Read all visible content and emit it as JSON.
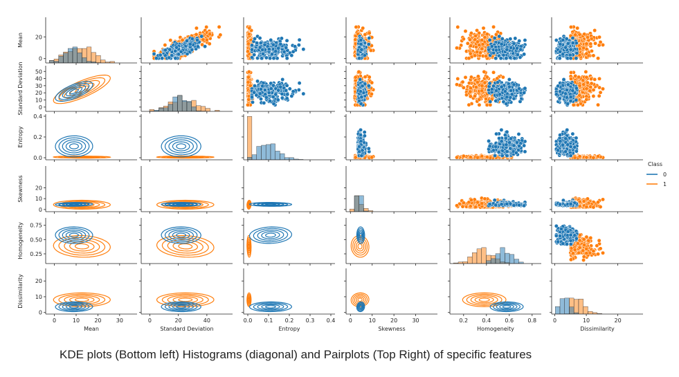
{
  "caption": "KDE plots (Bottom left) Histograms (diagonal) and Pairplots (Top Right) of specific features",
  "chart_data": {
    "type": "pairplot",
    "variables": [
      "Mean",
      "Standard Deviation",
      "Entropy",
      "Skewness",
      "Homogeneity",
      "Dissimilarity"
    ],
    "ticks": {
      "Mean": [
        0,
        10,
        20,
        30
      ],
      "Standard Deviation": [
        0,
        20,
        40
      ],
      "Entropy": [
        0.0,
        0.1,
        0.2,
        0.3,
        0.4
      ],
      "Skewness": [
        0,
        10,
        20,
        30
      ],
      "Homogeneity": [
        0.2,
        0.4,
        0.6,
        0.8
      ],
      "Dissimilarity": [
        0,
        10,
        20
      ]
    },
    "y_ticks": {
      "Mean": [
        0,
        20
      ],
      "Standard Deviation": [
        0,
        10,
        20,
        30,
        40,
        50
      ],
      "Entropy": [
        0.0,
        0.2,
        0.4
      ],
      "Skewness": [
        0,
        10,
        20
      ],
      "Homogeneity": [
        0.25,
        0.5,
        0.75
      ],
      "Dissimilarity": [
        0,
        10,
        20
      ]
    },
    "ranges": {
      "Mean": [
        -4,
        38
      ],
      "Standard Deviation": [
        -6,
        58
      ],
      "Entropy": [
        -0.02,
        0.42
      ],
      "Skewness": [
        -2,
        40
      ],
      "Homogeneity": [
        0.08,
        0.88
      ],
      "Dissimilarity": [
        -1,
        28
      ]
    },
    "lower_triangle": "kde",
    "diagonal": "histogram",
    "upper_triangle": "scatter",
    "legend": {
      "title": "Class",
      "placement": "right",
      "entries": [
        {
          "label": "0",
          "color": "#1f77b4"
        },
        {
          "label": "1",
          "color": "#ff7f0e"
        }
      ]
    },
    "classes": [
      {
        "label": "0",
        "color": "#1f77b4"
      },
      {
        "label": "1",
        "color": "#ff7f0e"
      }
    ]
  }
}
